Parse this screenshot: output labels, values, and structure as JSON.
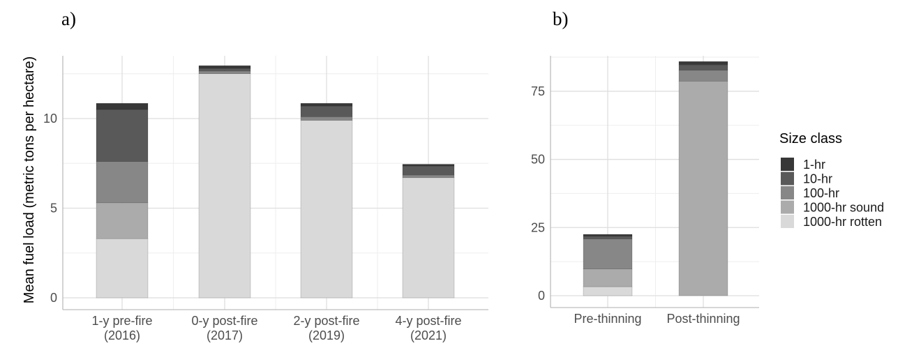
{
  "chart_data": [
    {
      "panel_label": "a)",
      "type": "bar",
      "stacked": true,
      "categories": [
        [
          "1-y pre-fire",
          "(2016)"
        ],
        [
          "0-y post-fire",
          "(2017)"
        ],
        [
          "2-y post-fire",
          "(2019)"
        ],
        [
          "4-y post-fire",
          "(2021)"
        ]
      ],
      "ylabel": "Mean fuel load (metric tons per hectare)",
      "ylim": [
        0,
        13.5
      ],
      "yticks": [
        0,
        5,
        10
      ],
      "ytick_labels": [
        "0",
        "5",
        "10"
      ],
      "series": [
        {
          "name": "1000-hr rotten",
          "values": [
            3.3,
            12.5,
            9.9,
            6.7
          ]
        },
        {
          "name": "1000-hr sound",
          "values": [
            2.0,
            0.0,
            0.0,
            0.0
          ]
        },
        {
          "name": "100-hr",
          "values": [
            2.3,
            0.15,
            0.2,
            0.15
          ]
        },
        {
          "name": "10-hr",
          "values": [
            2.9,
            0.15,
            0.6,
            0.5
          ]
        },
        {
          "name": "1-hr",
          "values": [
            0.35,
            0.15,
            0.15,
            0.1
          ]
        }
      ],
      "grid": true
    },
    {
      "panel_label": "b)",
      "type": "bar",
      "stacked": true,
      "categories": [
        [
          "Pre-thinning"
        ],
        [
          "Post-thinning"
        ]
      ],
      "ylim": [
        0,
        88
      ],
      "yticks": [
        0,
        25,
        50,
        75
      ],
      "ytick_labels": [
        "0",
        "25",
        "50",
        "75"
      ],
      "series": [
        {
          "name": "1000-hr rotten",
          "values": [
            3.3,
            0.0
          ]
        },
        {
          "name": "1000-hr sound",
          "values": [
            6.5,
            78.7
          ]
        },
        {
          "name": "100-hr",
          "values": [
            11.0,
            4.0
          ]
        },
        {
          "name": "10-hr",
          "values": [
            1.0,
            2.0
          ]
        },
        {
          "name": "1-hr",
          "values": [
            0.7,
            1.2
          ]
        }
      ],
      "grid": true
    }
  ],
  "legend": {
    "title": "Size class",
    "placement": "right",
    "entries": [
      {
        "label": "1-hr",
        "color": "#383838"
      },
      {
        "label": "10-hr",
        "color": "#595959"
      },
      {
        "label": "100-hr",
        "color": "#878787"
      },
      {
        "label": "1000-hr sound",
        "color": "#ababab"
      },
      {
        "label": "1000-hr rotten",
        "color": "#d9d9d9"
      }
    ]
  },
  "colors": {
    "1-hr": "#383838",
    "10-hr": "#595959",
    "100-hr": "#878787",
    "1000-hr sound": "#ababab",
    "1000-hr rotten": "#d9d9d9",
    "grid_major": "#dedede",
    "grid_minor": "#eeeeee",
    "axis": "#bdbdbd"
  }
}
